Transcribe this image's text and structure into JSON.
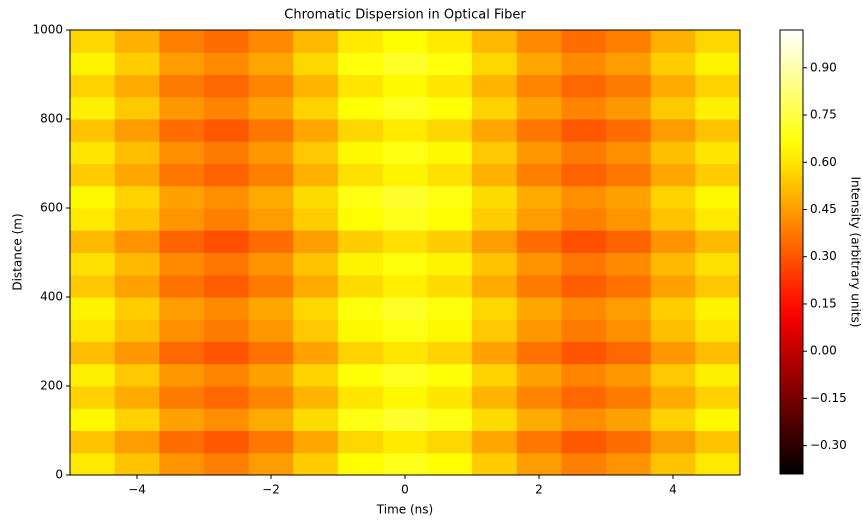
{
  "chart_data": {
    "type": "heatmap",
    "title": "Chromatic Dispersion in Optical Fiber",
    "x_label": "Time (ns)",
    "y_label": "Distance (m)",
    "colorbar_label": "Intensity (arbitrary units)",
    "colormap": "hot",
    "clim": [
      -0.39,
      1.02
    ],
    "xlim": [
      -5,
      5
    ],
    "ylim": [
      0,
      1000
    ],
    "xticks": [
      {
        "value": -4,
        "label": "−4"
      },
      {
        "value": -2,
        "label": "−2"
      },
      0,
      2,
      4
    ],
    "yticks": [
      0,
      200,
      400,
      600,
      800,
      1000
    ],
    "cticks": [
      {
        "value": -0.3,
        "label": "−0.30"
      },
      {
        "value": -0.15,
        "label": "−0.15"
      },
      {
        "value": 0,
        "label": "0.00"
      },
      {
        "value": 0.15,
        "label": "0.15"
      },
      {
        "value": 0.3,
        "label": "0.30"
      },
      {
        "value": 0.45,
        "label": "0.45"
      },
      {
        "value": 0.6,
        "label": "0.60"
      },
      {
        "value": 0.75,
        "label": "0.75"
      },
      {
        "value": 0.9,
        "label": "0.90"
      }
    ],
    "z": [
      [
        0.61,
        0.53,
        0.43,
        0.39,
        0.45,
        0.55,
        0.65,
        0.69,
        0.65,
        0.55,
        0.45,
        0.39,
        0.43,
        0.53,
        0.61
      ],
      [
        0.53,
        0.45,
        0.35,
        0.31,
        0.37,
        0.47,
        0.57,
        0.61,
        0.57,
        0.47,
        0.37,
        0.31,
        0.35,
        0.45,
        0.53
      ],
      [
        0.64,
        0.56,
        0.46,
        0.42,
        0.48,
        0.58,
        0.68,
        0.72,
        0.68,
        0.58,
        0.48,
        0.42,
        0.46,
        0.56,
        0.64
      ],
      [
        0.56,
        0.48,
        0.38,
        0.34,
        0.4,
        0.5,
        0.6,
        0.64,
        0.6,
        0.5,
        0.4,
        0.34,
        0.38,
        0.48,
        0.56
      ],
      [
        0.62,
        0.54,
        0.44,
        0.4,
        0.46,
        0.56,
        0.66,
        0.7,
        0.66,
        0.56,
        0.46,
        0.4,
        0.44,
        0.54,
        0.62
      ],
      [
        0.52,
        0.44,
        0.34,
        0.3,
        0.36,
        0.46,
        0.56,
        0.6,
        0.56,
        0.46,
        0.36,
        0.3,
        0.34,
        0.44,
        0.52
      ],
      [
        0.6,
        0.52,
        0.42,
        0.38,
        0.44,
        0.54,
        0.64,
        0.68,
        0.64,
        0.54,
        0.44,
        0.38,
        0.42,
        0.52,
        0.6
      ],
      [
        0.63,
        0.55,
        0.45,
        0.41,
        0.47,
        0.57,
        0.67,
        0.71,
        0.67,
        0.57,
        0.47,
        0.41,
        0.45,
        0.55,
        0.63
      ],
      [
        0.54,
        0.46,
        0.36,
        0.32,
        0.38,
        0.48,
        0.58,
        0.62,
        0.58,
        0.48,
        0.38,
        0.32,
        0.36,
        0.46,
        0.54
      ],
      [
        0.59,
        0.51,
        0.41,
        0.37,
        0.43,
        0.53,
        0.63,
        0.67,
        0.63,
        0.53,
        0.43,
        0.37,
        0.41,
        0.51,
        0.59
      ],
      [
        0.51,
        0.43,
        0.33,
        0.29,
        0.35,
        0.45,
        0.55,
        0.59,
        0.55,
        0.45,
        0.35,
        0.29,
        0.33,
        0.43,
        0.51
      ],
      [
        0.61,
        0.53,
        0.43,
        0.39,
        0.45,
        0.55,
        0.65,
        0.69,
        0.65,
        0.55,
        0.45,
        0.39,
        0.43,
        0.53,
        0.61
      ],
      [
        0.64,
        0.56,
        0.46,
        0.42,
        0.48,
        0.58,
        0.68,
        0.72,
        0.68,
        0.58,
        0.48,
        0.42,
        0.46,
        0.56,
        0.64
      ],
      [
        0.55,
        0.47,
        0.37,
        0.33,
        0.39,
        0.49,
        0.59,
        0.63,
        0.59,
        0.49,
        0.39,
        0.33,
        0.37,
        0.47,
        0.55
      ],
      [
        0.6,
        0.52,
        0.42,
        0.38,
        0.44,
        0.54,
        0.64,
        0.68,
        0.64,
        0.54,
        0.44,
        0.38,
        0.42,
        0.52,
        0.6
      ],
      [
        0.53,
        0.45,
        0.35,
        0.31,
        0.37,
        0.47,
        0.57,
        0.61,
        0.57,
        0.47,
        0.37,
        0.31,
        0.35,
        0.45,
        0.53
      ],
      [
        0.62,
        0.54,
        0.44,
        0.4,
        0.46,
        0.56,
        0.66,
        0.7,
        0.66,
        0.56,
        0.46,
        0.4,
        0.44,
        0.54,
        0.62
      ],
      [
        0.56,
        0.48,
        0.38,
        0.34,
        0.4,
        0.5,
        0.6,
        0.64,
        0.6,
        0.5,
        0.4,
        0.34,
        0.38,
        0.48,
        0.56
      ],
      [
        0.63,
        0.55,
        0.45,
        0.41,
        0.47,
        0.57,
        0.67,
        0.71,
        0.67,
        0.57,
        0.47,
        0.41,
        0.45,
        0.55,
        0.63
      ],
      [
        0.57,
        0.49,
        0.39,
        0.35,
        0.41,
        0.51,
        0.61,
        0.65,
        0.61,
        0.51,
        0.41,
        0.35,
        0.39,
        0.49,
        0.57
      ]
    ]
  }
}
